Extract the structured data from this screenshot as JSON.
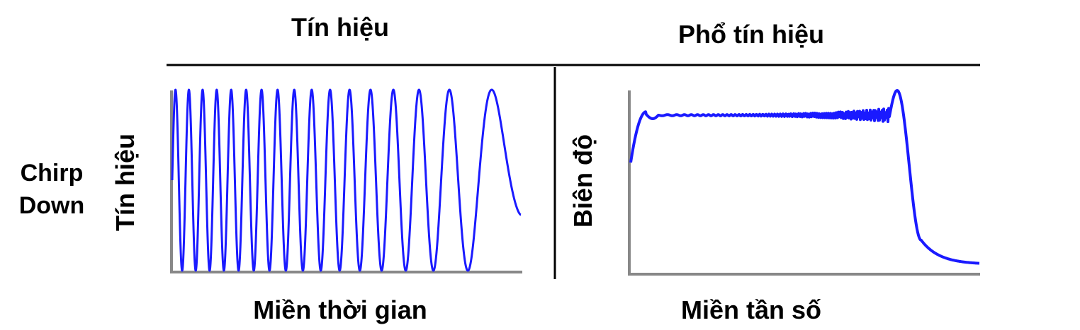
{
  "columns": {
    "left_title": "Tín hiệu",
    "right_title": "Phổ tín hiệu"
  },
  "row_label": {
    "line1": "Chirp",
    "line2": "Down"
  },
  "left_panel": {
    "ylabel": "Tín hiệu",
    "xlabel": "Miền thời gian",
    "waveform": "down-chirp sine (high to low frequency)",
    "color": "#1a1aff"
  },
  "right_panel": {
    "ylabel": "Biên độ",
    "xlabel": "Miền tần số",
    "waveform": "flat-top amplitude spectrum with ripple near upper band edge",
    "color": "#1a1aff"
  }
}
